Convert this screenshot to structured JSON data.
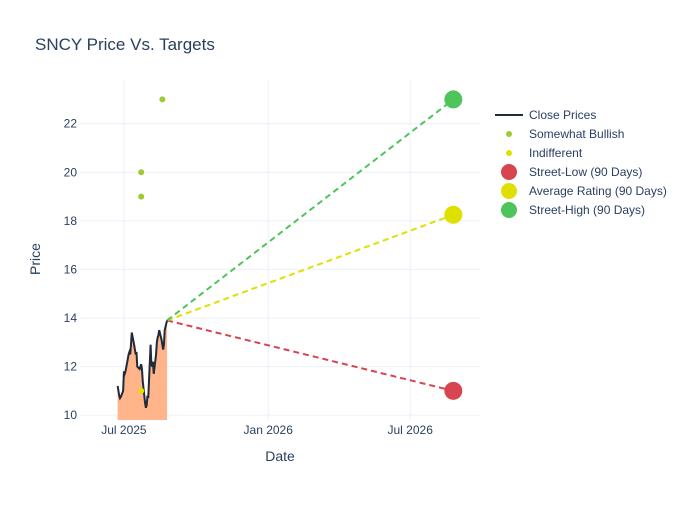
{
  "chart_data": {
    "type": "line",
    "title": "SNCY Price Vs. Targets",
    "xlabel": "Date",
    "ylabel": "Price",
    "x_ticks": [
      {
        "date": "2025-07-01",
        "label": "Jul 2025"
      },
      {
        "date": "2026-01-01",
        "label": "Jan 2026"
      },
      {
        "date": "2026-07-01",
        "label": "Jul 2026"
      }
    ],
    "y_ticks": [
      10,
      12,
      14,
      16,
      18,
      20,
      22
    ],
    "xlim": [
      "2025-05-06",
      "2026-09-28"
    ],
    "ylim": [
      9.8,
      23.8
    ],
    "grid": true,
    "legend_position": "right",
    "colors": {
      "close": "#1f2a3a",
      "fill": "#ffb48a",
      "somewhat_bullish": "#9acd32",
      "indifferent": "#e0e000",
      "street_low": "#d64550",
      "average": "#e0e000",
      "street_high": "#4fc45a",
      "text": "#2a3f5f",
      "grid": "#ebf0f8"
    },
    "series": [
      {
        "name": "Close Prices",
        "kind": "line",
        "points": [
          [
            "2025-06-23",
            11.2
          ],
          [
            "2025-06-24",
            11.0
          ],
          [
            "2025-06-25",
            10.8
          ],
          [
            "2025-06-26",
            10.7
          ],
          [
            "2025-06-27",
            10.75
          ],
          [
            "2025-06-30",
            11.0
          ],
          [
            "2025-07-01",
            11.8
          ],
          [
            "2025-07-02",
            11.7
          ],
          [
            "2025-07-03",
            11.8
          ],
          [
            "2025-07-07",
            12.5
          ],
          [
            "2025-07-08",
            12.6
          ],
          [
            "2025-07-09",
            12.5
          ],
          [
            "2025-07-10",
            12.9
          ],
          [
            "2025-07-11",
            13.4
          ],
          [
            "2025-07-14",
            12.9
          ],
          [
            "2025-07-15",
            12.7
          ],
          [
            "2025-07-16",
            12.5
          ],
          [
            "2025-07-17",
            12.6
          ],
          [
            "2025-07-18",
            12.0
          ],
          [
            "2025-07-21",
            11.9
          ],
          [
            "2025-07-22",
            12.0
          ],
          [
            "2025-07-23",
            12.1
          ],
          [
            "2025-07-24",
            11.9
          ],
          [
            "2025-07-25",
            11.4
          ],
          [
            "2025-07-28",
            10.5
          ],
          [
            "2025-07-29",
            10.3
          ],
          [
            "2025-07-30",
            10.4
          ],
          [
            "2025-07-31",
            10.8
          ],
          [
            "2025-08-01",
            10.7
          ],
          [
            "2025-08-04",
            12.9
          ],
          [
            "2025-08-05",
            12.1
          ],
          [
            "2025-08-06",
            12.0
          ],
          [
            "2025-08-07",
            12.2
          ],
          [
            "2025-08-08",
            11.7
          ],
          [
            "2025-08-11",
            12.5
          ],
          [
            "2025-08-12",
            13.0
          ],
          [
            "2025-08-13",
            13.2
          ],
          [
            "2025-08-14",
            13.3
          ],
          [
            "2025-08-15",
            13.5
          ],
          [
            "2025-08-18",
            13.1
          ],
          [
            "2025-08-19",
            12.9
          ],
          [
            "2025-08-20",
            12.7
          ],
          [
            "2025-08-21",
            12.9
          ],
          [
            "2025-08-22",
            13.5
          ],
          [
            "2025-08-25",
            13.9
          ]
        ]
      },
      {
        "name": "Somewhat Bullish",
        "kind": "markers",
        "points": [
          [
            "2025-07-23",
            19.0
          ],
          [
            "2025-07-23",
            20.0
          ],
          [
            "2025-08-19",
            23.0
          ]
        ]
      },
      {
        "name": "Indifferent",
        "kind": "markers",
        "points": [
          [
            "2025-07-23",
            11.0
          ]
        ]
      },
      {
        "name": "Street-Low (90 Days)",
        "kind": "target",
        "value": 11.0,
        "target_date": "2026-08-25"
      },
      {
        "name": "Average Rating (90 Days)",
        "kind": "target",
        "value": 18.25,
        "target_date": "2026-08-25"
      },
      {
        "name": "Street-High (90 Days)",
        "kind": "target",
        "value": 23.0,
        "target_date": "2026-08-25"
      }
    ]
  }
}
